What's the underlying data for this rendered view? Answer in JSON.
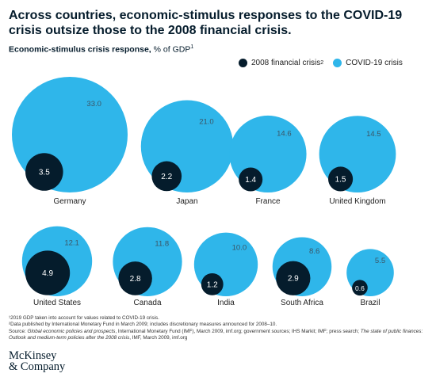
{
  "headline": "Across countries, economic-stimulus responses to the COVID-19 crisis outsize those to the 2008 financial crisis.",
  "subtitle": {
    "bold": "Economic-stimulus crisis response,",
    "rest": " % of GDP",
    "sup": "1"
  },
  "legend": [
    {
      "label": "2008 financial crisis",
      "sup": "2",
      "color": "#051c2c"
    },
    {
      "label": "COVID-19 crisis",
      "sup": "",
      "color": "#2fb6ea"
    }
  ],
  "colors": {
    "covid": "#2fb6ea",
    "gfc": "#051c2c",
    "text": "#051c2c"
  },
  "chart_data": {
    "type": "bubble",
    "series": [
      {
        "name": "2008 financial crisis",
        "key": "gfc"
      },
      {
        "name": "COVID-19 crisis",
        "key": "covid"
      }
    ],
    "categories": [
      "Germany",
      "Japan",
      "France",
      "United Kingdom",
      "United States",
      "Canada",
      "India",
      "South Africa",
      "Brazil"
    ],
    "points": [
      {
        "country": "Germany",
        "gfc": 3.5,
        "covid": 33.0,
        "gfc_label": "3.5",
        "covid_label": "33.0"
      },
      {
        "country": "Japan",
        "gfc": 2.2,
        "covid": 21.0,
        "gfc_label": "2.2",
        "covid_label": "21.0"
      },
      {
        "country": "France",
        "gfc": 1.4,
        "covid": 14.6,
        "gfc_label": "1.4",
        "covid_label": "14.6"
      },
      {
        "country": "United Kingdom",
        "gfc": 1.5,
        "covid": 14.5,
        "gfc_label": "1.5",
        "covid_label": "14.5"
      },
      {
        "country": "United States",
        "gfc": 4.9,
        "covid": 12.1,
        "gfc_label": "4.9",
        "covid_label": "12.1"
      },
      {
        "country": "Canada",
        "gfc": 2.8,
        "covid": 11.8,
        "gfc_label": "2.8",
        "covid_label": "11.8"
      },
      {
        "country": "India",
        "gfc": 1.2,
        "covid": 10.0,
        "gfc_label": "1.2",
        "covid_label": "10.0"
      },
      {
        "country": "South Africa",
        "gfc": 2.9,
        "covid": 8.6,
        "gfc_label": "2.9",
        "covid_label": "8.6"
      },
      {
        "country": "Brazil",
        "gfc": 0.6,
        "covid": 5.5,
        "gfc_label": "0.6",
        "covid_label": "5.5"
      }
    ]
  },
  "footnotes": {
    "n1": "¹2019 GDP taken into account for values related to COVID-19 crisis.",
    "n2": "²Data published by International Monetary Fund in March 2009; includes discretionary measures announced for 2008–10.",
    "source_1": "Source: ",
    "source_i1": "Global economic policies and prospects",
    "source_2": ", International Monetary Fund (IMF), March 2009, imf.org; government sources; IHS Markit; IMF; press search; ",
    "source_i2": "The state of public finances: Outlook and medium-term policies after the 2008 crisis",
    "source_3": ", IMF, March 2009, imf.org"
  },
  "logo": {
    "line1": "McKinsey",
    "line2": "& Company"
  }
}
